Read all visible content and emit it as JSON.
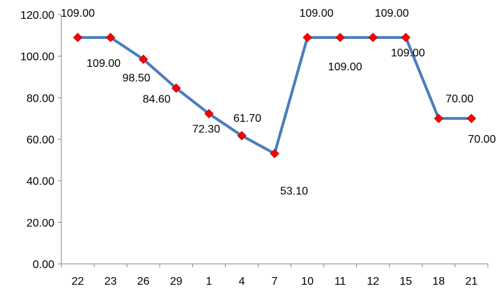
{
  "chart_data": {
    "type": "line",
    "title": "",
    "xlabel": "",
    "ylabel": "",
    "categories": [
      "22",
      "23",
      "26",
      "29",
      "1",
      "4",
      "7",
      "10",
      "11",
      "12",
      "15",
      "18",
      "21"
    ],
    "series": [
      {
        "values": [
          109.0,
          109.0,
          98.5,
          84.6,
          72.3,
          61.7,
          53.1,
          109.0,
          109.0,
          109.0,
          109.0,
          70.0,
          70.0
        ],
        "data_labels": [
          "109.00",
          "109.00",
          "98.50",
          "84.60",
          "72.30",
          "61.70",
          "53.10",
          "109.00",
          "109.00",
          "109.00",
          "109.00",
          "70.00",
          "70.00"
        ],
        "line_color": "#4a7ebb",
        "marker": "diamond",
        "marker_color": "#ff0000",
        "marker_edge_color": "#c00000"
      }
    ],
    "ylim": [
      0,
      120
    ],
    "y_ticks": [
      "0.00",
      "20.00",
      "40.00",
      "60.00",
      "80.00",
      "100.00",
      "120.00"
    ],
    "grid": false,
    "legend": "none"
  }
}
